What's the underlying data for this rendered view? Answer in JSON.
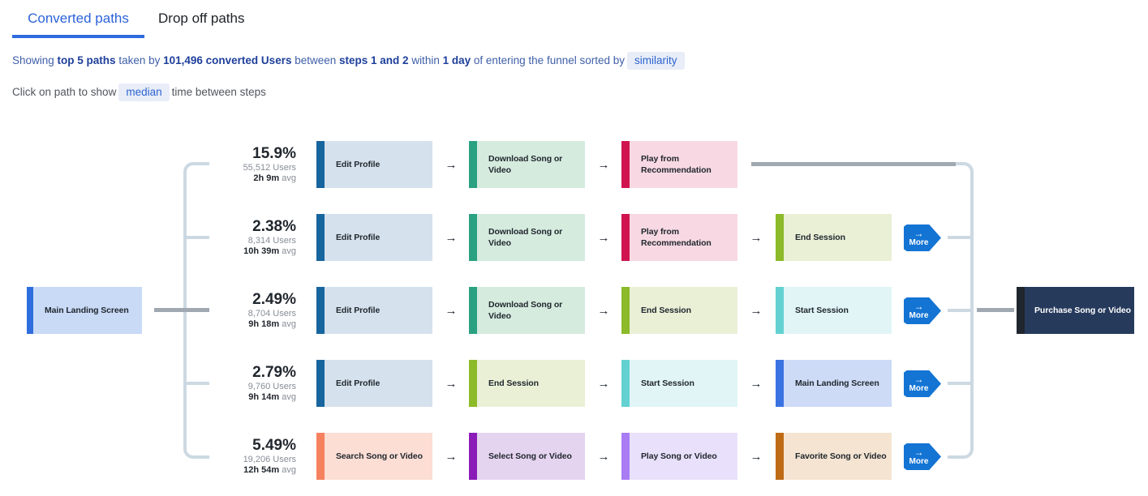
{
  "colors": {
    "accent_blue": "#1374d4",
    "tab_active": "#2b62d9",
    "tab_underline": "#2e6bdd",
    "tab_inactive": "#1d2126",
    "summary_text": "#3f5fa8",
    "summary_bold": "#1e3f9b",
    "chip_bg": "#e8edf8",
    "chip_text": "#2d64cf",
    "note_text": "#50555b",
    "connector_light": "#ccd9e2",
    "connector_dark": "#a0a9b2",
    "stat_dark": "#21272e",
    "stat_gray": "#878d96"
  },
  "tabs": {
    "converted": "Converted paths",
    "dropoff": "Drop off paths"
  },
  "summary": {
    "s1": "Showing ",
    "b1": "top 5 paths",
    "s2": " taken by ",
    "b2": "101,496 converted Users",
    "s3": " between ",
    "b3": "steps 1 and 2",
    "s4": " within ",
    "b4": "1 day",
    "s5": " of entering the funnel sorted by",
    "sort": "similarity"
  },
  "note": {
    "s1": "Click on path to show",
    "metric": "median",
    "s2": "time between steps"
  },
  "diagram": {
    "arrow": "→",
    "more_label": "More",
    "avg_suffix": "avg",
    "source": {
      "label": "Main Landing Screen",
      "bar": "#2e6ede",
      "bg": "#c9daf6"
    },
    "target": {
      "label": "Purchase Song or Video",
      "bar": "#20262e",
      "bg": "#263a5c",
      "text": "#ffffff"
    },
    "rows": [
      {
        "pct": "15.9%",
        "users": "55,512 Users",
        "avg": "2h 9m",
        "more": false,
        "steps": [
          {
            "label": "Edit Profile",
            "bar": "#17659f",
            "bg": "#d5e2ed"
          },
          {
            "label": "Download Song or Video",
            "bar": "#2aa181",
            "bg": "#d5ebde"
          },
          {
            "label": "Play from Recommendation",
            "bar": "#d0144f",
            "bg": "#f8d9e3"
          }
        ]
      },
      {
        "pct": "2.38%",
        "users": "8,314 Users",
        "avg": "10h 39m",
        "more": true,
        "steps": [
          {
            "label": "Edit Profile",
            "bar": "#17659f",
            "bg": "#d5e2ed"
          },
          {
            "label": "Download Song or Video",
            "bar": "#2aa181",
            "bg": "#d5ebde"
          },
          {
            "label": "Play from Recommendation",
            "bar": "#d0144f",
            "bg": "#f8d9e3"
          },
          {
            "label": "End Session",
            "bar": "#8cba29",
            "bg": "#e9f0d6"
          }
        ]
      },
      {
        "pct": "2.49%",
        "users": "8,704 Users",
        "avg": "9h 18m",
        "more": true,
        "steps": [
          {
            "label": "Edit Profile",
            "bar": "#17659f",
            "bg": "#d5e2ed"
          },
          {
            "label": "Download Song or Video",
            "bar": "#2aa181",
            "bg": "#d5ebde"
          },
          {
            "label": "End Session",
            "bar": "#8cba29",
            "bg": "#e9f0d6"
          },
          {
            "label": "Start Session",
            "bar": "#63d1d2",
            "bg": "#e1f5f6"
          }
        ]
      },
      {
        "pct": "2.79%",
        "users": "9,760 Users",
        "avg": "9h 14m",
        "more": true,
        "steps": [
          {
            "label": "Edit Profile",
            "bar": "#17659f",
            "bg": "#d5e2ed"
          },
          {
            "label": "End Session",
            "bar": "#8cba29",
            "bg": "#e9f0d6"
          },
          {
            "label": "Start Session",
            "bar": "#63d1d2",
            "bg": "#e1f5f6"
          },
          {
            "label": "Main Landing Screen",
            "bar": "#3a72e2",
            "bg": "#cddbf7"
          }
        ]
      },
      {
        "pct": "5.49%",
        "users": "19,206 Users",
        "avg": "12h 54m",
        "more": true,
        "steps": [
          {
            "label": "Search Song or Video",
            "bar": "#f5815e",
            "bg": "#fcded5"
          },
          {
            "label": "Select Song or Video",
            "bar": "#8b1cb8",
            "bg": "#e5d4f0"
          },
          {
            "label": "Play Song or Video",
            "bar": "#a97cf4",
            "bg": "#e9e1fb"
          },
          {
            "label": "Favorite Song or Video",
            "bar": "#bf6b16",
            "bg": "#f4e4d1"
          }
        ]
      }
    ]
  }
}
